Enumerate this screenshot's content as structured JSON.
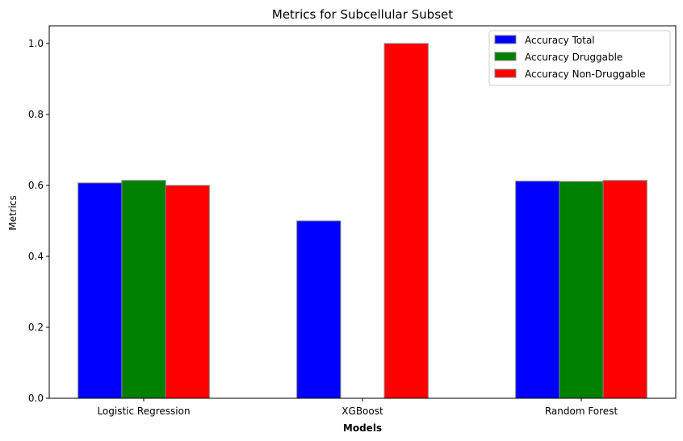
{
  "chart_data": {
    "type": "bar",
    "title": "Metrics for Subcellular Subset",
    "xlabel": "Models",
    "ylabel": "Metrics",
    "categories": [
      "Logistic Regression",
      "XGBoost",
      "Random Forest"
    ],
    "series": [
      {
        "name": "Accuracy Total",
        "color": "#0000ff",
        "values": [
          0.607,
          0.5,
          0.612
        ]
      },
      {
        "name": "Accuracy Druggable",
        "color": "#008000",
        "values": [
          0.614,
          0.0,
          0.611
        ]
      },
      {
        "name": "Accuracy Non-Druggable",
        "color": "#ff0000",
        "values": [
          0.6,
          1.0,
          0.614
        ]
      }
    ],
    "ylim": [
      0,
      1.05
    ],
    "yticks": [
      "0.0",
      "0.2",
      "0.4",
      "0.6",
      "0.8",
      "1.0"
    ],
    "grid": false,
    "legend_position": "top-right",
    "bar_edge_color": "#808080"
  }
}
